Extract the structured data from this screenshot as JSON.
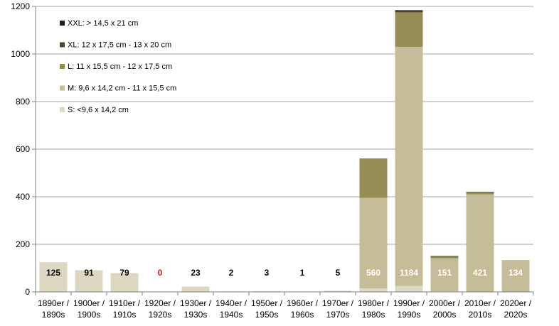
{
  "chart_data": {
    "type": "bar",
    "stacked": true,
    "ylim": [
      0,
      1200
    ],
    "yticks": [
      0,
      200,
      400,
      600,
      800,
      1000,
      1200
    ],
    "grid": true,
    "legend_position": "top-left",
    "categories": [
      [
        "1890er /",
        "1890s"
      ],
      [
        "1900er /",
        "1900s"
      ],
      [
        "1910er /",
        "1910s"
      ],
      [
        "1920er /",
        "1920s"
      ],
      [
        "1930er /",
        "1930s"
      ],
      [
        "1940er /",
        "1940s"
      ],
      [
        "1950er /",
        "1950s"
      ],
      [
        "1960er /",
        "1960s"
      ],
      [
        "1970er /",
        "1970s"
      ],
      [
        "1980er /",
        "1980s"
      ],
      [
        "1990er /",
        "1990s"
      ],
      [
        "2000er /",
        "2000s"
      ],
      [
        "2010er /",
        "2010s"
      ],
      [
        "2020er /",
        "2020s"
      ]
    ],
    "series": [
      {
        "name": "S: <9,6 x 14,2 cm",
        "color": "#dcd8c2",
        "values": [
          125,
          91,
          79,
          0,
          23,
          2,
          3,
          1,
          5,
          15,
          25,
          3,
          0,
          0
        ]
      },
      {
        "name": "M: 9,6 x 14,2 cm - 11 x 15,5 cm",
        "color": "#c4bd98",
        "values": [
          0,
          0,
          0,
          0,
          0,
          0,
          0,
          0,
          0,
          380,
          1005,
          138,
          410,
          134
        ]
      },
      {
        "name": "L: 11 x 15,5 cm - 12 x 17,5 cm",
        "color": "#968d55",
        "values": [
          0,
          0,
          0,
          0,
          0,
          0,
          0,
          0,
          0,
          163,
          145,
          7,
          9,
          0
        ]
      },
      {
        "name": "XL: 12 x 17,5 cm - 13 x 20 cm",
        "color": "#4a4530",
        "values": [
          0,
          0,
          0,
          0,
          0,
          0,
          0,
          0,
          0,
          2,
          5,
          3,
          2,
          0
        ]
      },
      {
        "name": "XXL: > 14,5 x 21 cm",
        "color": "#221f16",
        "values": [
          0,
          0,
          0,
          0,
          0,
          0,
          0,
          0,
          0,
          0,
          4,
          0,
          0,
          0
        ]
      }
    ],
    "totals": [
      {
        "text": "125",
        "color": "#000000"
      },
      {
        "text": "91",
        "color": "#000000"
      },
      {
        "text": "79",
        "color": "#000000"
      },
      {
        "text": "0",
        "color": "#e01010"
      },
      {
        "text": "23",
        "color": "#000000"
      },
      {
        "text": "2",
        "color": "#000000"
      },
      {
        "text": "3",
        "color": "#000000"
      },
      {
        "text": "1",
        "color": "#000000"
      },
      {
        "text": "5",
        "color": "#000000"
      },
      {
        "text": "560",
        "color": "#ffffff"
      },
      {
        "text": "1184",
        "color": "#ffffff"
      },
      {
        "text": "151",
        "color": "#ffffff"
      },
      {
        "text": "421",
        "color": "#ffffff"
      },
      {
        "text": "134",
        "color": "#ffffff"
      }
    ]
  }
}
